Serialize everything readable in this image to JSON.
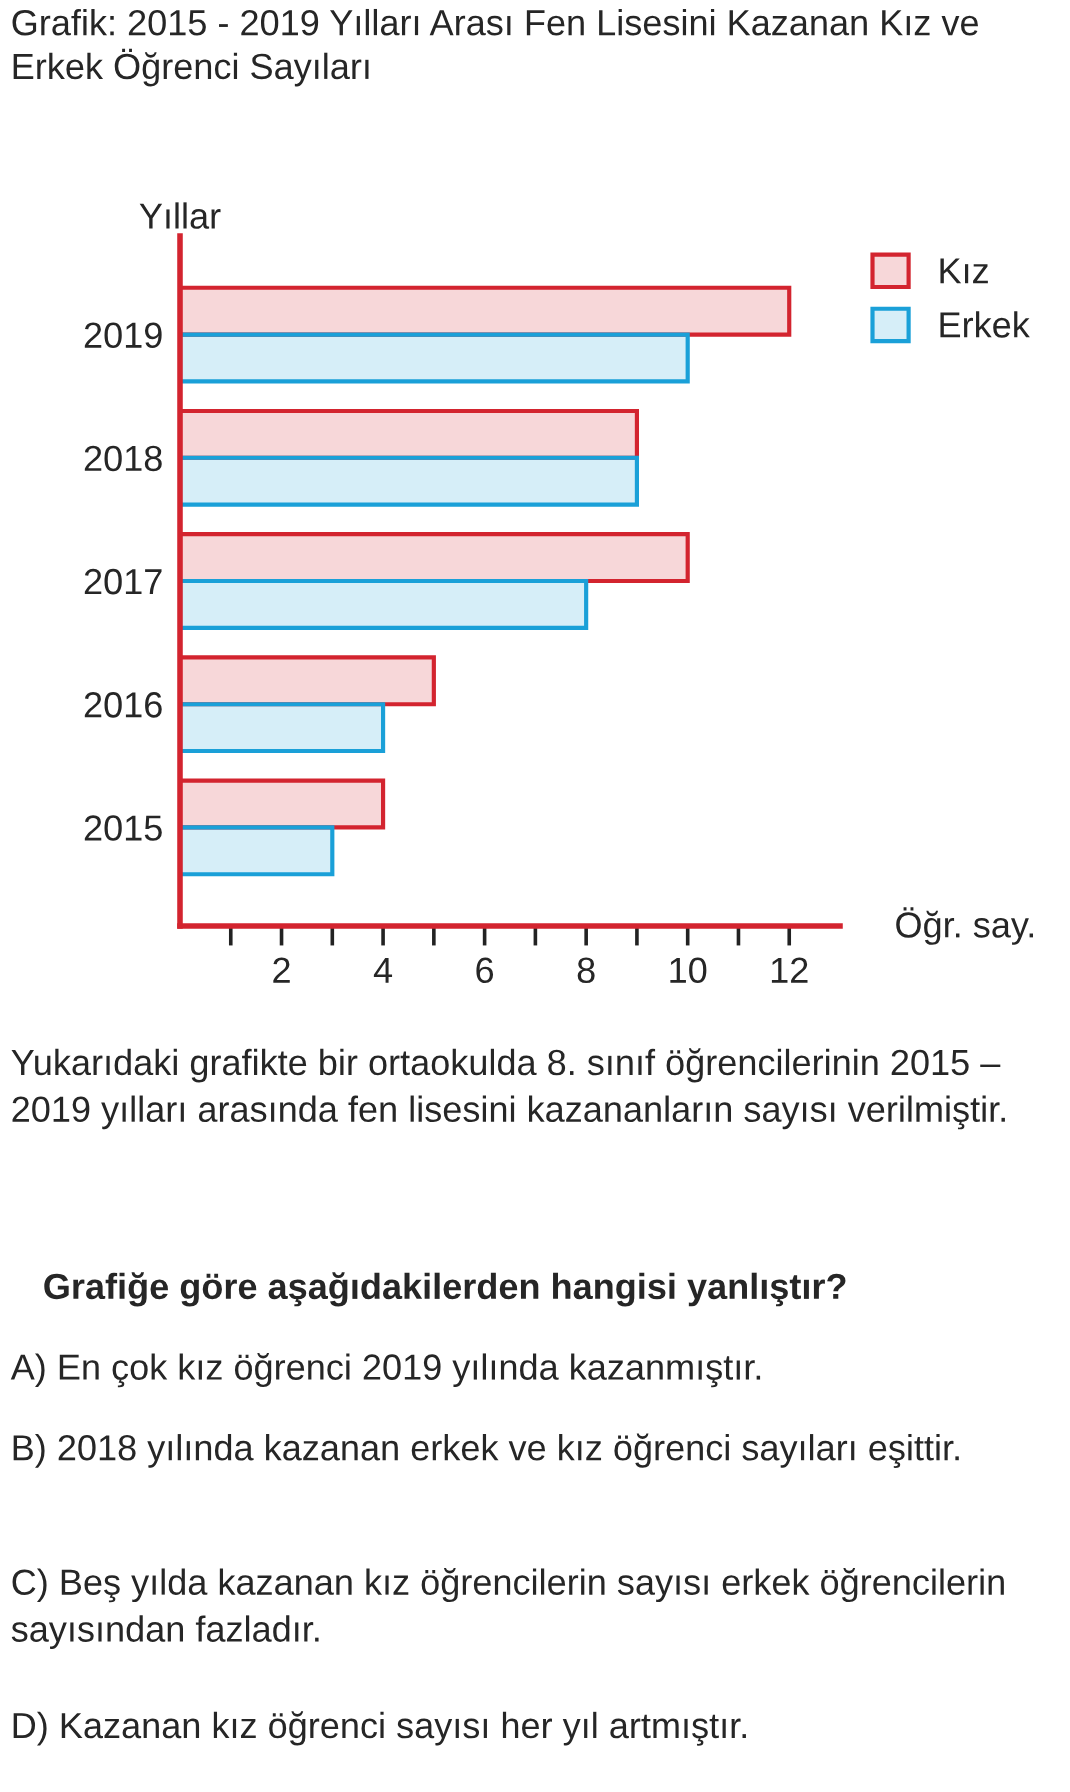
{
  "chart_data": {
    "type": "bar",
    "orientation": "horizontal",
    "title": "Grafik: 2015 - 2019 Yılları Arası Fen Lisesini Kazanan Kız ve Erkek Öğrenci Sayıları",
    "ylabel": "Yıllar",
    "xlabel": "Öğr. say.",
    "categories": [
      "2019",
      "2018",
      "2017",
      "2016",
      "2015"
    ],
    "series": [
      {
        "name": "Kız",
        "color": "#d3242f",
        "values": [
          12,
          9,
          10,
          5,
          4
        ]
      },
      {
        "name": "Erkek",
        "color": "#1aa0d8",
        "values": [
          10,
          9,
          8,
          4,
          3
        ]
      }
    ],
    "xlim": [
      0,
      13
    ],
    "xticks": [
      {
        "value": 1,
        "label": null
      },
      2,
      {
        "value": 3,
        "label": null
      },
      4,
      {
        "value": 5,
        "label": null
      },
      6,
      {
        "value": 7,
        "label": null
      },
      8,
      {
        "value": 9,
        "label": null
      },
      10,
      {
        "value": 11,
        "label": null
      },
      12
    ],
    "legend": "top right",
    "grid": false,
    "annotations": [
      "Yukarıdaki grafikte bir ortaokulda 8. sınıf öğrencilerinin 2015 – 2019 yılları arasında fen lisesini kazananların sayısı verilmiştir.",
      "Grafiğe göre aşağıdakilerden hangisi yanlıştır?",
      "A) En çok kız öğrenci 2019 yılında kazanmıştır.",
      "B) 2018 yılında kazanan erkek ve kız öğrenci sayıları eşittir.",
      "C) Beş yılda kazanan kız öğrencilerin sayısı erkek öğrencilerin sayısından fazladır.",
      "D) Kazanan kız öğrenci sayısı her yıl artmıştır."
    ]
  }
}
